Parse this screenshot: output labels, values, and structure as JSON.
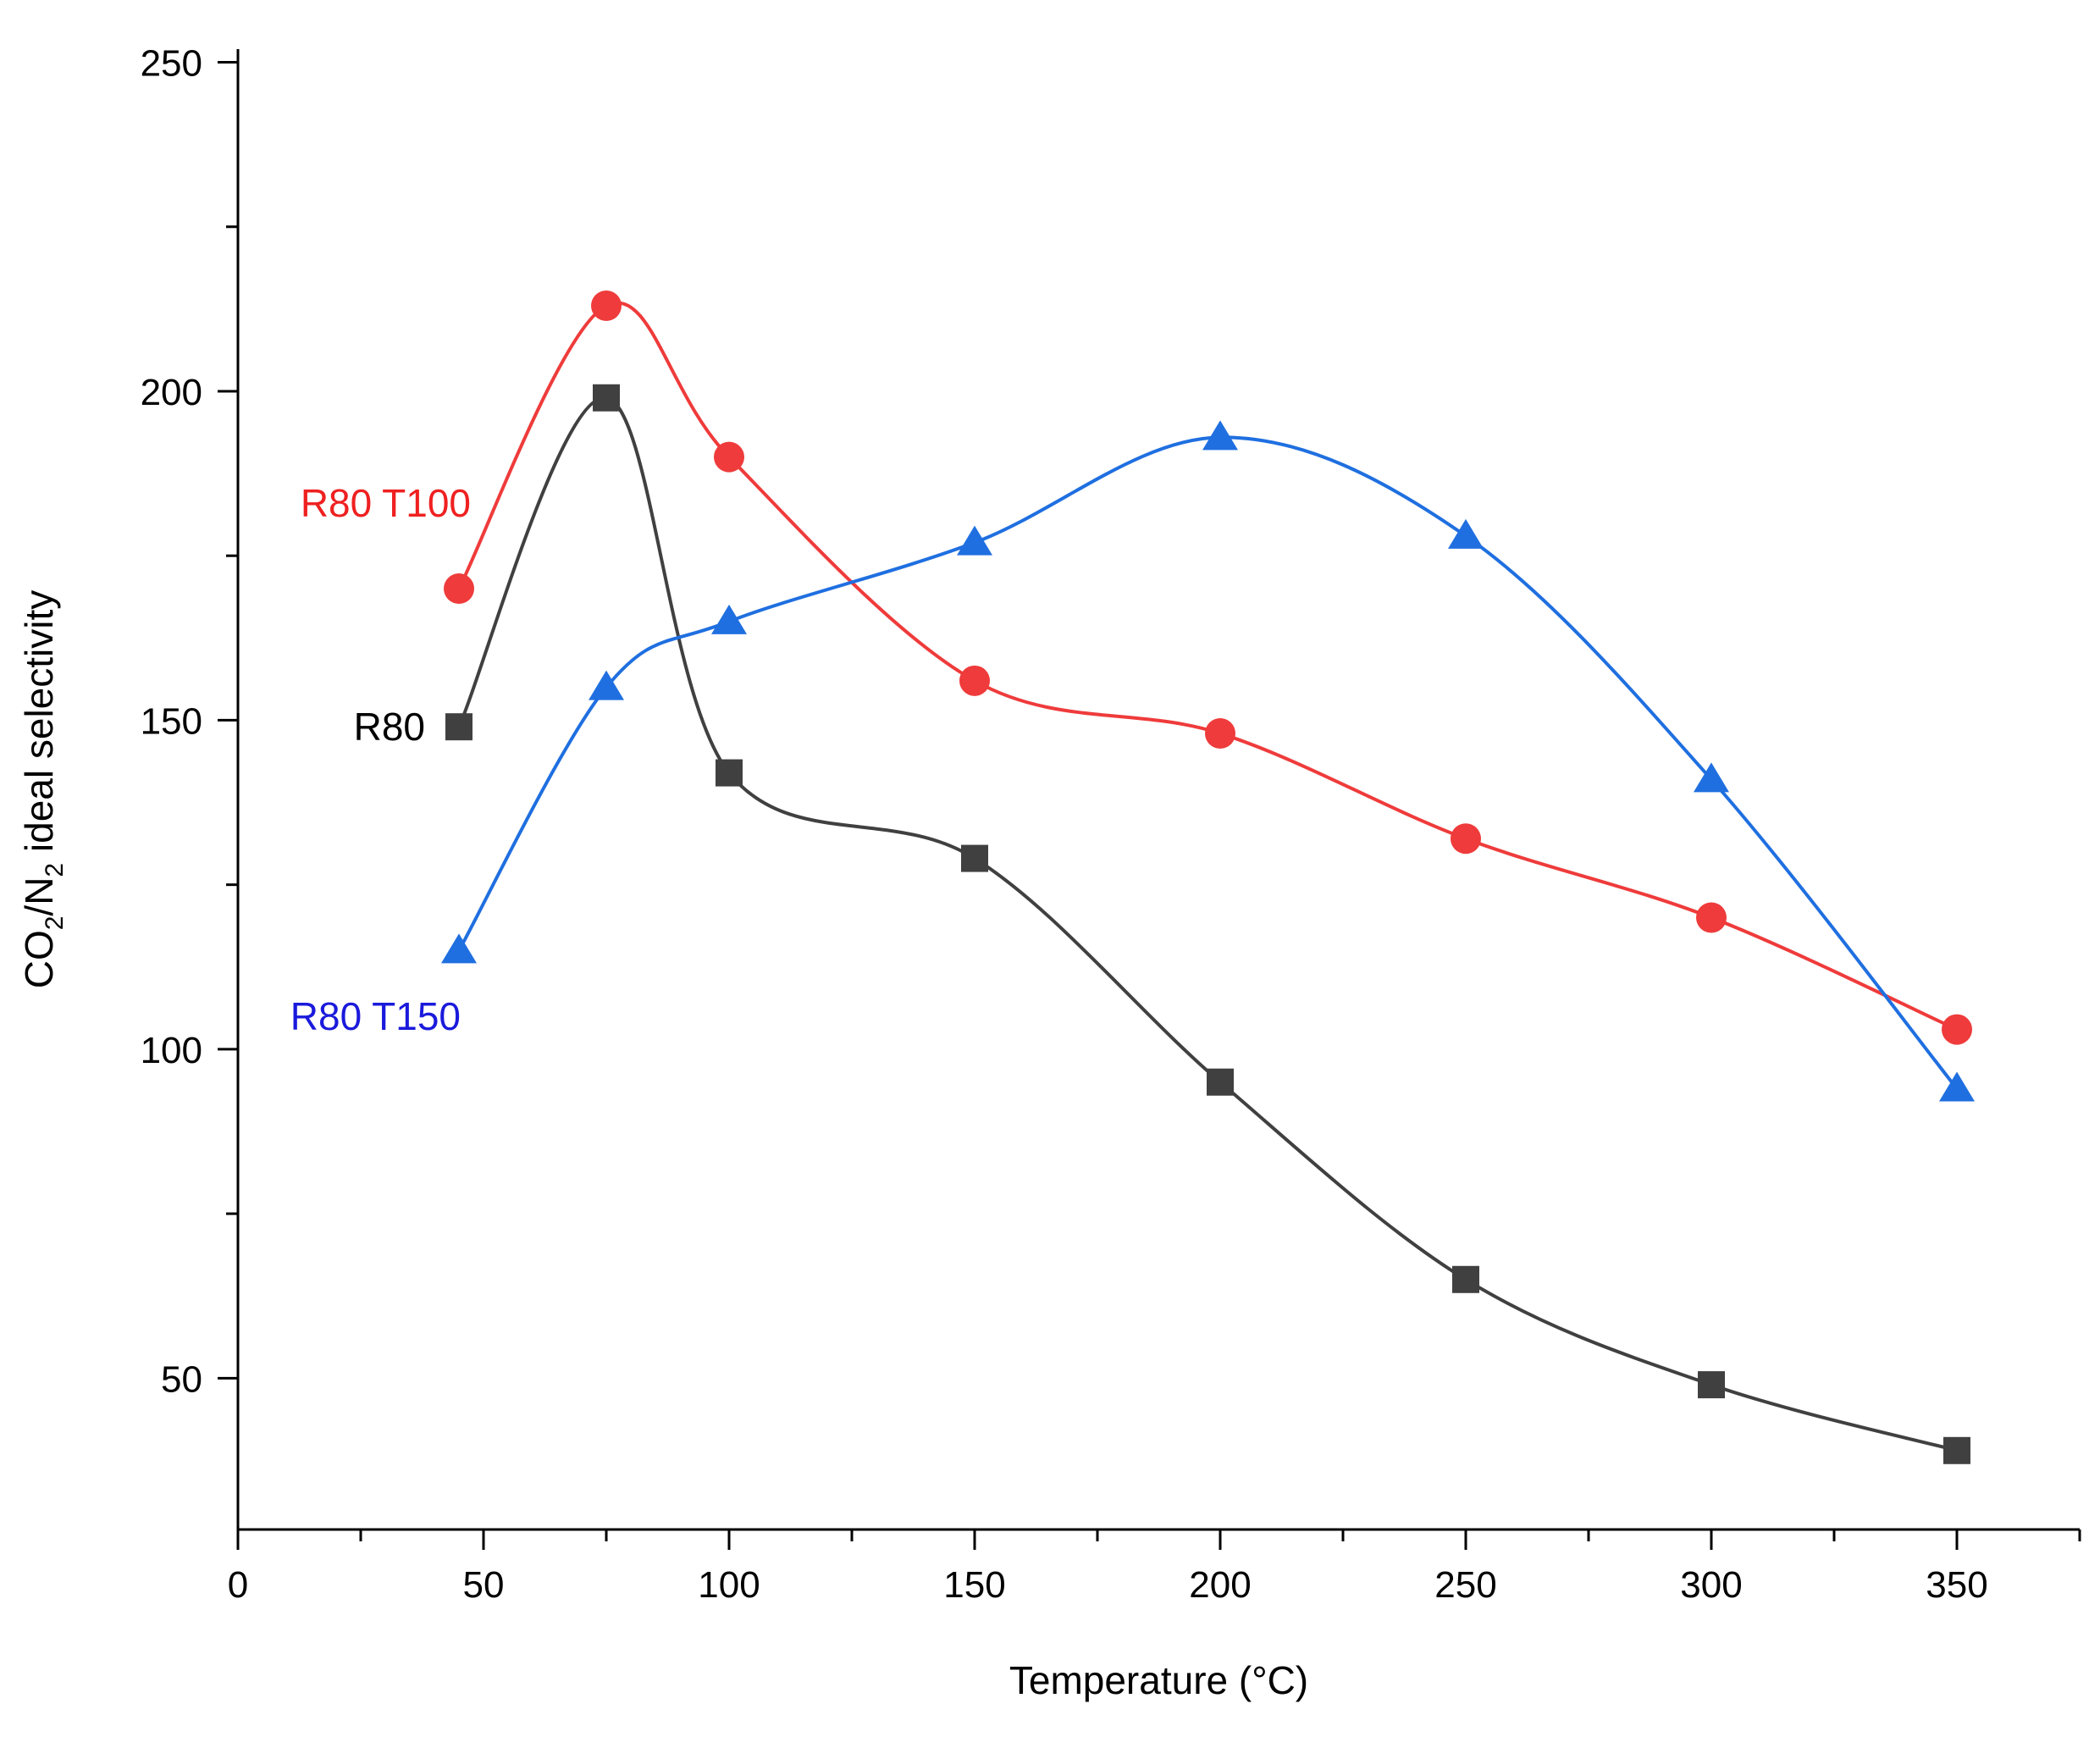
{
  "chart_data": {
    "type": "line",
    "title": "",
    "xlabel": "Temperature (°C)",
    "ylabel": {
      "parts": [
        {
          "text": "CO",
          "sub": false
        },
        {
          "text": "2",
          "sub": true
        },
        {
          "text": "/N",
          "sub": false
        },
        {
          "text": "2",
          "sub": true
        },
        {
          "text": " ideal selectivity",
          "sub": false
        }
      ]
    },
    "xlim": [
      0,
      375
    ],
    "ylim": [
      27,
      252
    ],
    "x_ticks": [
      0,
      50,
      100,
      150,
      200,
      250,
      300,
      350
    ],
    "x_minor_ticks": [
      25,
      75,
      125,
      175,
      225,
      275,
      325,
      375
    ],
    "y_ticks": [
      50,
      100,
      150,
      200,
      250
    ],
    "y_minor_ticks": [
      75,
      125,
      175,
      225
    ],
    "grid": false,
    "series": [
      {
        "name": "R80",
        "label": "R80",
        "color": "#404040",
        "marker": "square",
        "x": [
          45,
          75,
          100,
          150,
          200,
          250,
          300,
          350
        ],
        "values": [
          149,
          199,
          142,
          129,
          95,
          65,
          49,
          39
        ]
      },
      {
        "name": "R80 T100",
        "label": "R80 T100",
        "color": "#ef3b3b",
        "marker": "circle",
        "x": [
          45,
          75,
          100,
          150,
          200,
          250,
          300,
          350
        ],
        "values": [
          170,
          213,
          190,
          156,
          148,
          132,
          120,
          103
        ]
      },
      {
        "name": "R80 T150",
        "label": "R80 T150",
        "color": "#1f6fe0",
        "marker": "triangle",
        "x": [
          45,
          75,
          100,
          150,
          200,
          250,
          300,
          350
        ],
        "values": [
          115,
          155,
          165,
          177,
          193,
          178,
          141,
          94
        ]
      }
    ],
    "series_label_colors": {
      "R80": "#000000",
      "R80 T100": "#ef2020",
      "R80 T150": "#1a1adc"
    }
  }
}
